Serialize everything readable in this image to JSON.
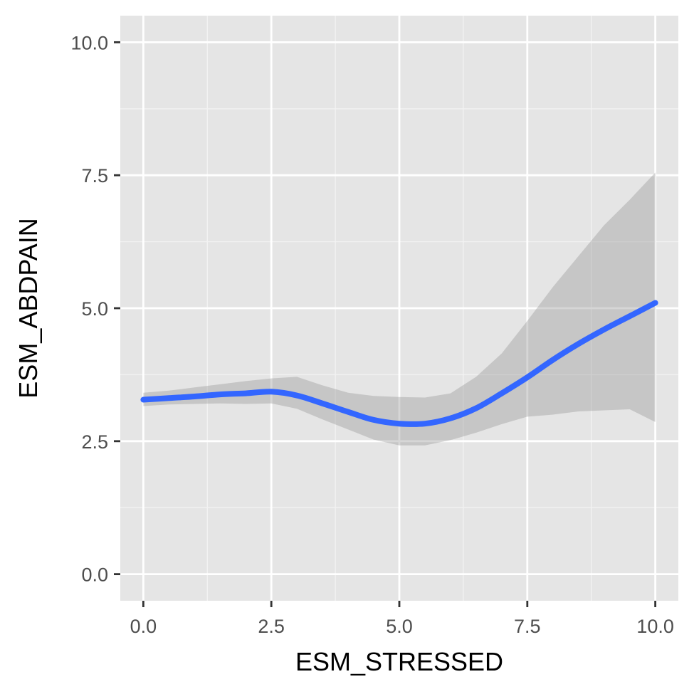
{
  "chart_data": {
    "type": "line",
    "title": "",
    "xlabel": "ESM_STRESSED",
    "ylabel": "ESM_ABDPAIN",
    "xlim": [
      -0.45,
      10.45
    ],
    "ylim": [
      -0.5,
      10.5
    ],
    "x_ticks": [
      0.0,
      2.5,
      5.0,
      7.5,
      10.0
    ],
    "x_tick_labels": [
      "0.0",
      "2.5",
      "5.0",
      "7.5",
      "10.0"
    ],
    "y_ticks": [
      0.0,
      2.5,
      5.0,
      7.5,
      10.0
    ],
    "y_tick_labels": [
      "0.0",
      "2.5",
      "5.0",
      "7.5",
      "10.0"
    ],
    "grid": true,
    "legend": "none",
    "series": [
      {
        "kind": "smooth-line",
        "color": "#3366ff",
        "points": [
          {
            "x": 0.0,
            "y": 3.28
          },
          {
            "x": 0.5,
            "y": 3.31
          },
          {
            "x": 1.0,
            "y": 3.34
          },
          {
            "x": 1.5,
            "y": 3.38
          },
          {
            "x": 2.0,
            "y": 3.4
          },
          {
            "x": 2.5,
            "y": 3.43
          },
          {
            "x": 3.0,
            "y": 3.36
          },
          {
            "x": 3.5,
            "y": 3.21
          },
          {
            "x": 4.0,
            "y": 3.05
          },
          {
            "x": 4.5,
            "y": 2.9
          },
          {
            "x": 5.0,
            "y": 2.83
          },
          {
            "x": 5.5,
            "y": 2.83
          },
          {
            "x": 6.0,
            "y": 2.93
          },
          {
            "x": 6.5,
            "y": 3.12
          },
          {
            "x": 7.0,
            "y": 3.4
          },
          {
            "x": 7.5,
            "y": 3.7
          },
          {
            "x": 8.0,
            "y": 4.03
          },
          {
            "x": 8.5,
            "y": 4.33
          },
          {
            "x": 9.0,
            "y": 4.6
          },
          {
            "x": 9.5,
            "y": 4.85
          },
          {
            "x": 10.0,
            "y": 5.1
          }
        ]
      },
      {
        "kind": "confidence-band",
        "color": "#999999",
        "opacity": 0.4,
        "points": [
          {
            "x": 0.0,
            "lower": 3.16,
            "upper": 3.41
          },
          {
            "x": 0.5,
            "lower": 3.19,
            "upper": 3.45
          },
          {
            "x": 1.0,
            "lower": 3.2,
            "upper": 3.51
          },
          {
            "x": 1.5,
            "lower": 3.21,
            "upper": 3.57
          },
          {
            "x": 2.0,
            "lower": 3.2,
            "upper": 3.63
          },
          {
            "x": 2.5,
            "lower": 3.21,
            "upper": 3.68
          },
          {
            "x": 3.0,
            "lower": 3.11,
            "upper": 3.71
          },
          {
            "x": 3.5,
            "lower": 2.91,
            "upper": 3.55
          },
          {
            "x": 4.0,
            "lower": 2.72,
            "upper": 3.41
          },
          {
            "x": 4.5,
            "lower": 2.53,
            "upper": 3.35
          },
          {
            "x": 5.0,
            "lower": 2.42,
            "upper": 3.33
          },
          {
            "x": 5.5,
            "lower": 2.42,
            "upper": 3.32
          },
          {
            "x": 6.0,
            "lower": 2.52,
            "upper": 3.4
          },
          {
            "x": 6.5,
            "lower": 2.66,
            "upper": 3.71
          },
          {
            "x": 7.0,
            "lower": 2.82,
            "upper": 4.15
          },
          {
            "x": 7.5,
            "lower": 2.96,
            "upper": 4.76
          },
          {
            "x": 8.0,
            "lower": 3.0,
            "upper": 5.4
          },
          {
            "x": 8.5,
            "lower": 3.06,
            "upper": 5.98
          },
          {
            "x": 9.0,
            "lower": 3.08,
            "upper": 6.56
          },
          {
            "x": 9.5,
            "lower": 3.1,
            "upper": 7.04
          },
          {
            "x": 10.0,
            "lower": 2.86,
            "upper": 7.55
          }
        ]
      }
    ]
  }
}
